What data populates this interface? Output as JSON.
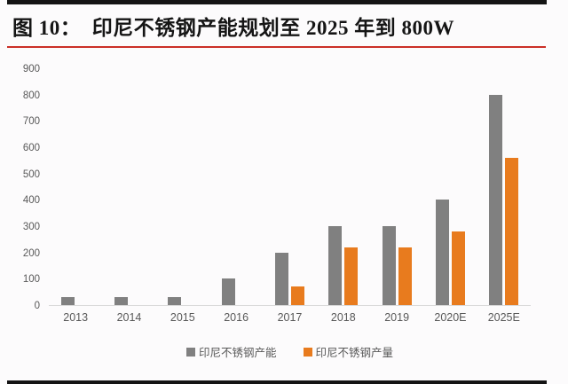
{
  "page": {
    "title": "图 10：  印尼不锈钢产能规划至 2025 年到 800W"
  },
  "colors": {
    "top_rule": "#141414",
    "title_underline_red": "#cb2f27",
    "capacity_gray": "#808080",
    "production_orange": "#e87b1e",
    "axis_text": "#595959",
    "baseline": "#d9d9d9",
    "background": "#fcfbfc"
  },
  "chart_data": {
    "type": "bar",
    "title": "图 10：印尼不锈钢产能规划至 2025 年到 800W",
    "xlabel": "",
    "ylabel": "",
    "categories": [
      "2013",
      "2014",
      "2015",
      "2016",
      "2017",
      "2018",
      "2019",
      "2020E",
      "2025E"
    ],
    "series": [
      {
        "id": "capacity",
        "name": "印尼不锈钢产能",
        "color": "#808080",
        "values": [
          30,
          30,
          30,
          100,
          200,
          300,
          300,
          400,
          800
        ]
      },
      {
        "id": "production",
        "name": "印尼不锈钢产量",
        "color": "#e87b1e",
        "values": [
          0,
          0,
          0,
          0,
          70,
          220,
          220,
          280,
          560
        ]
      }
    ],
    "ylim": [
      0,
      900
    ],
    "yticks": [
      900,
      800,
      700,
      600,
      500,
      400,
      300,
      200,
      100,
      0
    ],
    "grid": false,
    "legend_position": "bottom"
  }
}
